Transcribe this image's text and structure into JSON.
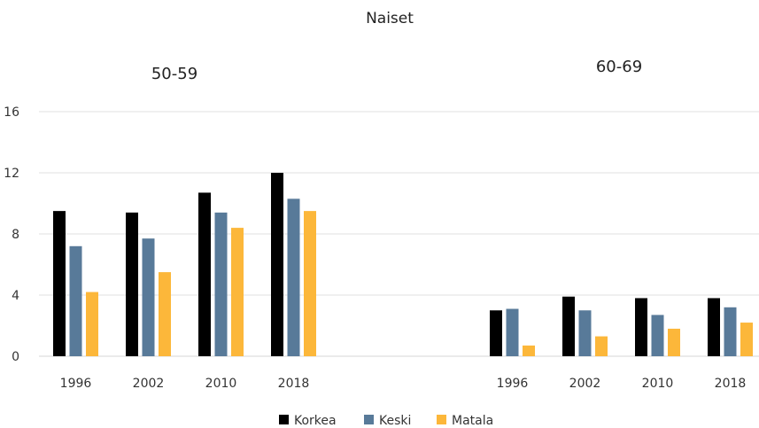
{
  "chart_data": {
    "type": "bar",
    "title": "Naiset",
    "ylim": [
      0,
      16
    ],
    "yticks": [
      "0",
      "4",
      "8",
      "12",
      "16"
    ],
    "grid": true,
    "legend_position": "bottom",
    "colors": {
      "Korkea": "#000000",
      "Keski": "#587a99",
      "Matala": "#fcb73a"
    },
    "groups": [
      {
        "label": "50-59",
        "categories": [
          "1996",
          "2002",
          "2010",
          "2018"
        ],
        "series": [
          {
            "name": "Korkea",
            "values": [
              9.5,
              9.4,
              10.7,
              12.0
            ]
          },
          {
            "name": "Keski",
            "values": [
              7.2,
              7.7,
              9.4,
              10.3
            ]
          },
          {
            "name": "Matala",
            "values": [
              4.2,
              5.5,
              8.4,
              9.5
            ]
          }
        ]
      },
      {
        "label": "60-69",
        "categories": [
          "1996",
          "2002",
          "2010",
          "2018"
        ],
        "series": [
          {
            "name": "Korkea",
            "values": [
              3.0,
              3.9,
              3.8,
              3.8
            ]
          },
          {
            "name": "Keski",
            "values": [
              3.1,
              3.0,
              2.7,
              3.2
            ]
          },
          {
            "name": "Matala",
            "values": [
              0.7,
              1.3,
              1.8,
              2.2
            ]
          }
        ]
      }
    ],
    "legend": [
      "Korkea",
      "Keski",
      "Matala"
    ]
  }
}
